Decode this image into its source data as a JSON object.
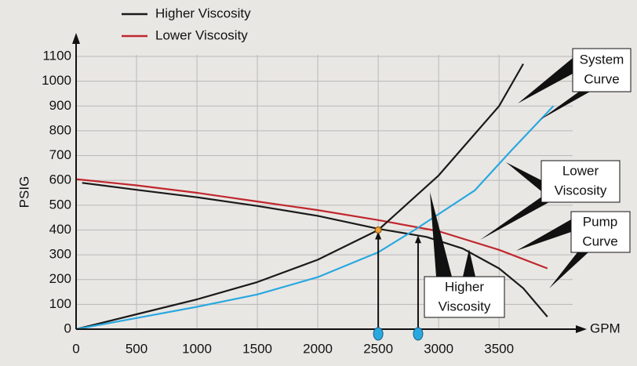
{
  "chart_data": {
    "type": "line",
    "xlabel": "GPM",
    "ylabel": "PSIG",
    "xlim": [
      0,
      4200
    ],
    "ylim": [
      0,
      1100
    ],
    "xticks": [
      0,
      500,
      1000,
      1500,
      2000,
      2500,
      3000,
      3500
    ],
    "yticks": [
      0,
      100,
      200,
      300,
      400,
      500,
      600,
      700,
      800,
      900,
      1000,
      1100
    ],
    "grid": true,
    "legend": [
      {
        "label": "Higher Viscosity",
        "color": "#1a1a1a"
      },
      {
        "label": "Lower Viscosity",
        "color": "#c0272d"
      }
    ],
    "series": [
      {
        "color": "#1a1a1a",
        "x": [
          50,
          500,
          1000,
          1500,
          2000,
          2500,
          2900,
          3200,
          3500,
          3700,
          3900
        ],
        "y": [
          590,
          562,
          532,
          497,
          457,
          405,
          372,
          325,
          245,
          165,
          50
        ]
      },
      {
        "color": "#c0272d",
        "x": [
          0,
          500,
          1000,
          1500,
          2000,
          2500,
          3000,
          3500,
          3900
        ],
        "y": [
          605,
          580,
          550,
          515,
          480,
          440,
          395,
          320,
          245
        ]
      },
      {
        "color": "#1a1a1a",
        "x": [
          0,
          500,
          1000,
          1500,
          2000,
          2500,
          3000,
          3500,
          3700
        ],
        "y": [
          0,
          60,
          120,
          190,
          280,
          400,
          620,
          900,
          1070
        ]
      },
      {
        "color": "#29a8e0",
        "x": [
          0,
          500,
          1000,
          1500,
          2000,
          2500,
          2800,
          3300,
          3600,
          3950
        ],
        "y": [
          0,
          45,
          90,
          140,
          210,
          310,
          400,
          560,
          720,
          900
        ]
      }
    ],
    "operating_points": [
      {
        "x": 2500,
        "y": 400,
        "color": "#f0a030"
      },
      {
        "x": 2830,
        "y": 385
      }
    ],
    "annotations": [
      {
        "lines": [
          "System",
          "Curve"
        ]
      },
      {
        "lines": [
          "Lower",
          "Viscosity"
        ]
      },
      {
        "lines": [
          "Pump",
          "Curve"
        ]
      },
      {
        "lines": [
          "Higher",
          "Viscosity"
        ]
      }
    ]
  }
}
